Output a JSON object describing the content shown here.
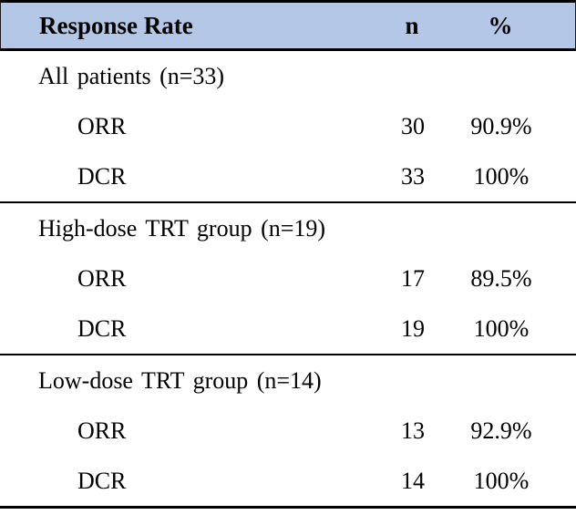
{
  "chart_data": {
    "type": "table",
    "title": "Response Rate",
    "columns": [
      "Response Rate",
      "n",
      "%"
    ],
    "groups": [
      {
        "group": "All patients (n=33)",
        "rows": [
          [
            "ORR",
            30,
            "90.9%"
          ],
          [
            "DCR",
            33,
            "100%"
          ]
        ]
      },
      {
        "group": "High-dose TRT group (n=19)",
        "rows": [
          [
            "ORR",
            17,
            "89.5%"
          ],
          [
            "DCR",
            19,
            "100%"
          ]
        ]
      },
      {
        "group": "Low-dose TRT group (n=14)",
        "rows": [
          [
            "ORR",
            13,
            "92.9%"
          ],
          [
            "DCR",
            14,
            "100%"
          ]
        ]
      }
    ]
  },
  "colors": {
    "header_bg": "#b4c7e7",
    "border": "#000000",
    "text": "#000000"
  },
  "table": {
    "header": {
      "label": "Response Rate",
      "n": "n",
      "pct": "%"
    },
    "sections": [
      {
        "title": "All patients (n=33)",
        "rows": [
          {
            "label": "ORR",
            "n": "30",
            "pct": "90.9%"
          },
          {
            "label": "DCR",
            "n": "33",
            "pct": "100%"
          }
        ]
      },
      {
        "title": "High-dose TRT group (n=19)",
        "rows": [
          {
            "label": "ORR",
            "n": "17",
            "pct": "89.5%"
          },
          {
            "label": "DCR",
            "n": "19",
            "pct": "100%"
          }
        ]
      },
      {
        "title": "Low-dose TRT group (n=14)",
        "rows": [
          {
            "label": "ORR",
            "n": "13",
            "pct": "92.9%"
          },
          {
            "label": "DCR",
            "n": "14",
            "pct": "100%"
          }
        ]
      }
    ]
  }
}
